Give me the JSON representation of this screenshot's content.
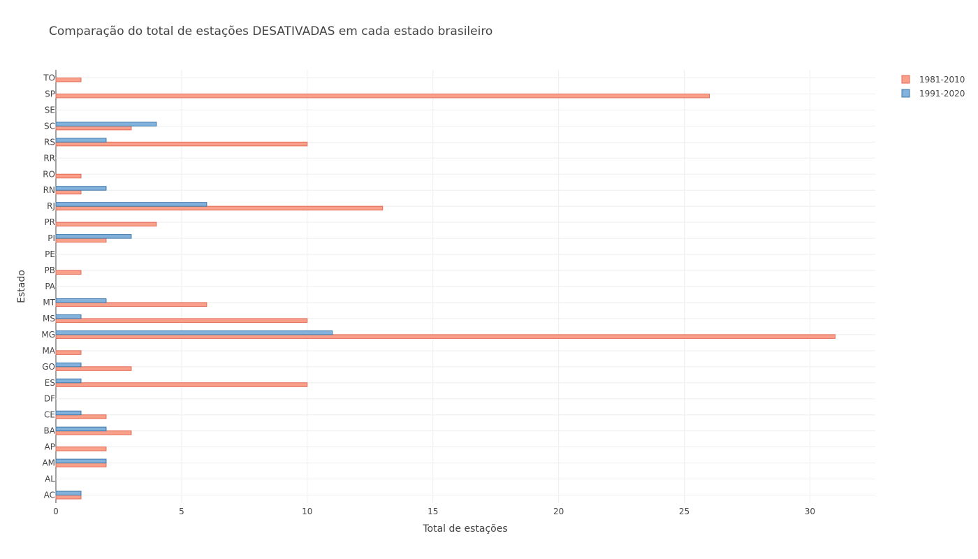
{
  "chart_data": {
    "type": "bar",
    "orientation": "horizontal",
    "title": "Comparação do total de estações DESATIVADAS em cada estado brasileiro",
    "xlabel": "Total de estações",
    "ylabel": "Estado",
    "xlim": [
      0,
      32.6
    ],
    "x_ticks": [
      0,
      5,
      10,
      15,
      20,
      25,
      30
    ],
    "grid": true,
    "legend_position": "top-right",
    "categories": [
      "AC",
      "AL",
      "AM",
      "AP",
      "BA",
      "CE",
      "DF",
      "ES",
      "GO",
      "MA",
      "MG",
      "MS",
      "MT",
      "PA",
      "PB",
      "PE",
      "PI",
      "PR",
      "RJ",
      "RN",
      "RO",
      "RR",
      "RS",
      "SC",
      "SE",
      "SP",
      "TO"
    ],
    "series": [
      {
        "name": "1981-2010",
        "color": "#f9a08a",
        "border_color": "#e46a55",
        "values": [
          1,
          0,
          2,
          2,
          3,
          2,
          0,
          10,
          3,
          1,
          31,
          10,
          6,
          0,
          1,
          0,
          2,
          4,
          13,
          1,
          1,
          0,
          10,
          3,
          0,
          26,
          1
        ]
      },
      {
        "name": "1991-2020",
        "color": "#82b1dc",
        "border_color": "#3f78ab",
        "values": [
          1,
          0,
          2,
          0,
          2,
          1,
          0,
          1,
          1,
          0,
          11,
          1,
          2,
          0,
          0,
          0,
          3,
          0,
          6,
          2,
          0,
          0,
          2,
          4,
          0,
          0,
          0
        ]
      }
    ]
  }
}
